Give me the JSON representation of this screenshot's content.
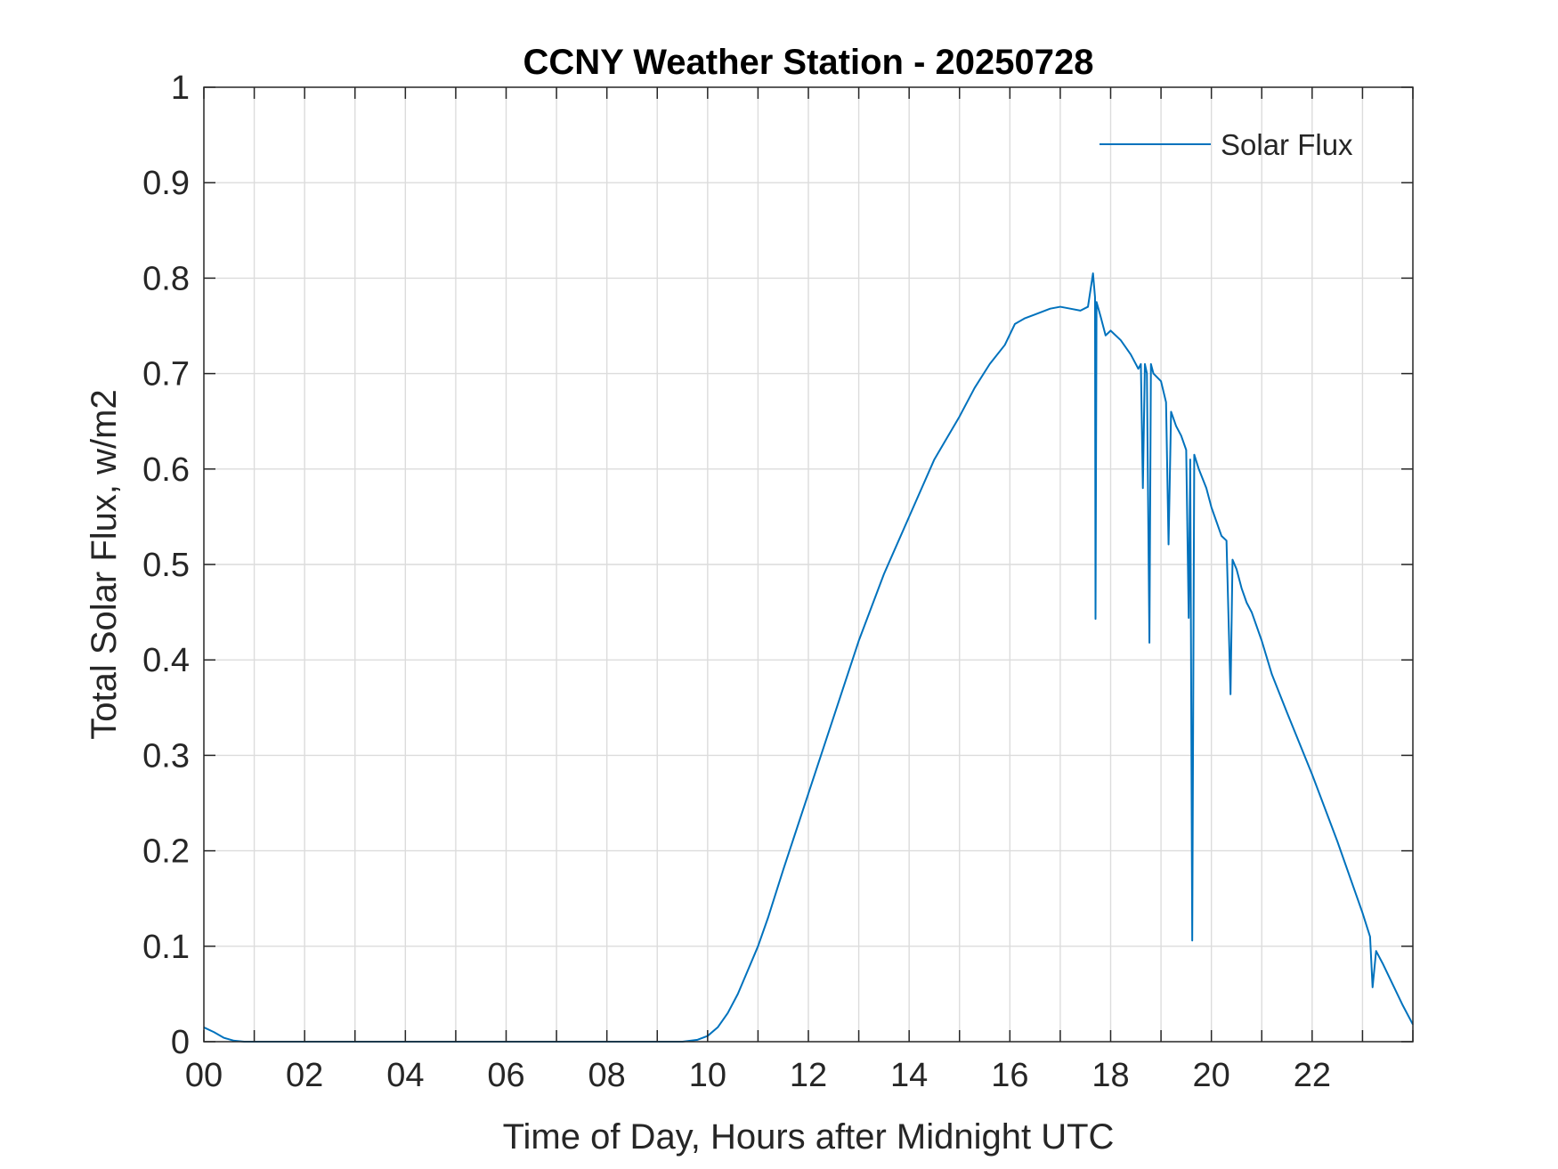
{
  "chart_data": {
    "type": "line",
    "title": "CCNY Weather Station - 20250728",
    "xlabel": "Time of Day, Hours after Midnight UTC",
    "ylabel": "Total Solar Flux, w/m2",
    "xlim": [
      0,
      24
    ],
    "ylim": [
      0,
      1
    ],
    "xticks": [
      0,
      2,
      4,
      6,
      8,
      10,
      12,
      14,
      16,
      18,
      20,
      22
    ],
    "xtick_labels": [
      "00",
      "02",
      "04",
      "06",
      "08",
      "10",
      "12",
      "14",
      "16",
      "18",
      "20",
      "22"
    ],
    "yticks": [
      0,
      0.1,
      0.2,
      0.3,
      0.4,
      0.5,
      0.6,
      0.7,
      0.8,
      0.9,
      1
    ],
    "ytick_labels": [
      "0",
      "0.1",
      "0.2",
      "0.3",
      "0.4",
      "0.5",
      "0.6",
      "0.7",
      "0.8",
      "0.9",
      "1"
    ],
    "grid": true,
    "legend": {
      "position": "top-right",
      "entries": [
        "Solar Flux"
      ]
    },
    "series": [
      {
        "name": "Solar Flux",
        "color": "#0072BD",
        "points": [
          [
            0.0,
            0.015
          ],
          [
            0.2,
            0.01
          ],
          [
            0.4,
            0.004
          ],
          [
            0.6,
            0.001
          ],
          [
            0.8,
            0.0
          ],
          [
            1.0,
            0.0
          ],
          [
            9.5,
            0.0
          ],
          [
            9.8,
            0.002
          ],
          [
            10.0,
            0.006
          ],
          [
            10.2,
            0.015
          ],
          [
            10.4,
            0.03
          ],
          [
            10.6,
            0.05
          ],
          [
            10.8,
            0.075
          ],
          [
            11.0,
            0.1
          ],
          [
            11.2,
            0.13
          ],
          [
            11.5,
            0.18
          ],
          [
            12.0,
            0.26
          ],
          [
            12.5,
            0.34
          ],
          [
            13.0,
            0.42
          ],
          [
            13.5,
            0.49
          ],
          [
            14.0,
            0.55
          ],
          [
            14.5,
            0.61
          ],
          [
            15.0,
            0.655
          ],
          [
            15.3,
            0.685
          ],
          [
            15.6,
            0.71
          ],
          [
            15.9,
            0.73
          ],
          [
            16.1,
            0.752
          ],
          [
            16.3,
            0.758
          ],
          [
            16.5,
            0.762
          ],
          [
            16.8,
            0.768
          ],
          [
            17.0,
            0.77
          ],
          [
            17.2,
            0.768
          ],
          [
            17.4,
            0.766
          ],
          [
            17.55,
            0.77
          ],
          [
            17.65,
            0.805
          ],
          [
            17.69,
            0.78
          ],
          [
            17.7,
            0.443
          ],
          [
            17.72,
            0.775
          ],
          [
            17.8,
            0.76
          ],
          [
            17.9,
            0.74
          ],
          [
            18.0,
            0.745
          ],
          [
            18.2,
            0.735
          ],
          [
            18.4,
            0.72
          ],
          [
            18.55,
            0.705
          ],
          [
            18.6,
            0.71
          ],
          [
            18.64,
            0.58
          ],
          [
            18.68,
            0.71
          ],
          [
            18.72,
            0.7
          ],
          [
            18.77,
            0.418
          ],
          [
            18.8,
            0.71
          ],
          [
            18.85,
            0.7
          ],
          [
            19.0,
            0.692
          ],
          [
            19.1,
            0.67
          ],
          [
            19.15,
            0.521
          ],
          [
            19.2,
            0.66
          ],
          [
            19.3,
            0.645
          ],
          [
            19.4,
            0.635
          ],
          [
            19.5,
            0.62
          ],
          [
            19.55,
            0.444
          ],
          [
            19.58,
            0.61
          ],
          [
            19.62,
            0.106
          ],
          [
            19.66,
            0.615
          ],
          [
            19.75,
            0.6
          ],
          [
            19.9,
            0.58
          ],
          [
            20.0,
            0.56
          ],
          [
            20.1,
            0.545
          ],
          [
            20.2,
            0.53
          ],
          [
            20.3,
            0.525
          ],
          [
            20.38,
            0.364
          ],
          [
            20.42,
            0.505
          ],
          [
            20.5,
            0.495
          ],
          [
            20.6,
            0.475
          ],
          [
            20.7,
            0.46
          ],
          [
            20.8,
            0.45
          ],
          [
            21.0,
            0.42
          ],
          [
            21.2,
            0.385
          ],
          [
            21.5,
            0.345
          ],
          [
            22.0,
            0.28
          ],
          [
            22.5,
            0.21
          ],
          [
            23.0,
            0.135
          ],
          [
            23.15,
            0.11
          ],
          [
            23.2,
            0.057
          ],
          [
            23.27,
            0.095
          ],
          [
            23.4,
            0.082
          ],
          [
            23.6,
            0.06
          ],
          [
            23.8,
            0.038
          ],
          [
            24.0,
            0.018
          ]
        ]
      }
    ]
  }
}
